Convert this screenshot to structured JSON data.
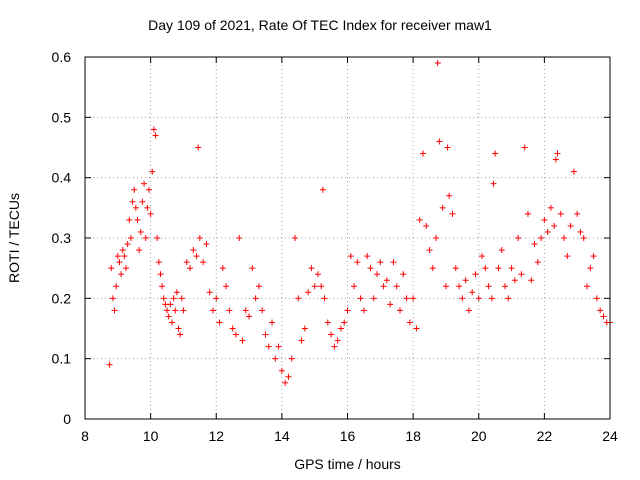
{
  "chart_data": {
    "type": "scatter",
    "title": "Day 109 of 2021, Rate Of TEC Index for receiver maw1",
    "xlabel": "GPS time / hours",
    "ylabel": "ROTI / TECUs",
    "xlim": [
      8,
      24
    ],
    "ylim": [
      0,
      0.6
    ],
    "xticks": [
      8,
      10,
      12,
      14,
      16,
      18,
      20,
      22,
      24
    ],
    "yticks": [
      0,
      0.1,
      0.2,
      0.3,
      0.4,
      0.5,
      0.6
    ],
    "grid": true,
    "marker": "plus",
    "color": "#ff0000",
    "series": [
      {
        "x": [
          8.75,
          8.8,
          8.85,
          8.9,
          8.95,
          9.0,
          9.05,
          9.1,
          9.15,
          9.2,
          9.25,
          9.3,
          9.35,
          9.4,
          9.45,
          9.5,
          9.55,
          9.6,
          9.65,
          9.7,
          9.75,
          9.8,
          9.85,
          9.9,
          9.95,
          10.0,
          10.05,
          10.1,
          10.15,
          10.2,
          10.25,
          10.3,
          10.35,
          10.4,
          10.45,
          10.5,
          10.55,
          10.6,
          10.65,
          10.7,
          10.75,
          10.8,
          10.85,
          10.9,
          10.95,
          11.0,
          11.1,
          11.2,
          11.3,
          11.4,
          11.45,
          11.5,
          11.6,
          11.7,
          11.8,
          11.9,
          12.0,
          12.1,
          12.2,
          12.3,
          12.4,
          12.5,
          12.6,
          12.7,
          12.8,
          12.9,
          13.0,
          13.1,
          13.2,
          13.3,
          13.4,
          13.5,
          13.6,
          13.7,
          13.8,
          13.9,
          14.0,
          14.1,
          14.2,
          14.3,
          14.4,
          14.5,
          14.6,
          14.7,
          14.8,
          14.9,
          15.0,
          15.1,
          15.2,
          15.25,
          15.3,
          15.4,
          15.5,
          15.6,
          15.7,
          15.8,
          15.9,
          16.0,
          16.1,
          16.2,
          16.3,
          16.4,
          16.5,
          16.6,
          16.7,
          16.8,
          16.9,
          17.0,
          17.1,
          17.2,
          17.3,
          17.4,
          17.5,
          17.6,
          17.7,
          17.8,
          17.9,
          18.0,
          18.1,
          18.2,
          18.3,
          18.4,
          18.5,
          18.6,
          18.7,
          18.75,
          18.8,
          18.9,
          19.0,
          19.05,
          19.1,
          19.2,
          19.3,
          19.4,
          19.5,
          19.6,
          19.7,
          19.8,
          19.9,
          20.0,
          20.1,
          20.2,
          20.3,
          20.4,
          20.45,
          20.5,
          20.6,
          20.7,
          20.8,
          20.9,
          21.0,
          21.1,
          21.2,
          21.3,
          21.4,
          21.5,
          21.6,
          21.7,
          21.8,
          21.9,
          22.0,
          22.1,
          22.2,
          22.3,
          22.35,
          22.4,
          22.5,
          22.6,
          22.7,
          22.8,
          22.9,
          23.0,
          23.1,
          23.2,
          23.3,
          23.4,
          23.5,
          23.6,
          23.7,
          23.8,
          23.9,
          24.0
        ],
        "y": [
          0.09,
          0.25,
          0.2,
          0.18,
          0.22,
          0.27,
          0.26,
          0.24,
          0.28,
          0.27,
          0.25,
          0.29,
          0.33,
          0.3,
          0.36,
          0.38,
          0.35,
          0.33,
          0.28,
          0.31,
          0.36,
          0.39,
          0.3,
          0.35,
          0.38,
          0.34,
          0.41,
          0.48,
          0.47,
          0.3,
          0.26,
          0.24,
          0.22,
          0.2,
          0.19,
          0.18,
          0.17,
          0.19,
          0.16,
          0.2,
          0.18,
          0.21,
          0.15,
          0.14,
          0.2,
          0.18,
          0.26,
          0.25,
          0.28,
          0.27,
          0.45,
          0.3,
          0.26,
          0.29,
          0.21,
          0.18,
          0.2,
          0.16,
          0.25,
          0.22,
          0.18,
          0.15,
          0.14,
          0.3,
          0.13,
          0.18,
          0.17,
          0.25,
          0.2,
          0.22,
          0.18,
          0.14,
          0.12,
          0.16,
          0.1,
          0.12,
          0.08,
          0.06,
          0.07,
          0.1,
          0.3,
          0.2,
          0.13,
          0.15,
          0.21,
          0.25,
          0.22,
          0.24,
          0.22,
          0.38,
          0.2,
          0.16,
          0.14,
          0.12,
          0.13,
          0.15,
          0.16,
          0.18,
          0.27,
          0.22,
          0.26,
          0.2,
          0.18,
          0.27,
          0.25,
          0.2,
          0.24,
          0.26,
          0.22,
          0.23,
          0.19,
          0.26,
          0.22,
          0.18,
          0.24,
          0.2,
          0.16,
          0.2,
          0.15,
          0.33,
          0.44,
          0.32,
          0.28,
          0.25,
          0.3,
          0.59,
          0.46,
          0.35,
          0.22,
          0.45,
          0.37,
          0.34,
          0.25,
          0.22,
          0.2,
          0.23,
          0.18,
          0.21,
          0.24,
          0.2,
          0.27,
          0.25,
          0.22,
          0.2,
          0.39,
          0.44,
          0.25,
          0.28,
          0.22,
          0.2,
          0.25,
          0.23,
          0.3,
          0.24,
          0.45,
          0.34,
          0.23,
          0.29,
          0.26,
          0.3,
          0.33,
          0.31,
          0.35,
          0.32,
          0.43,
          0.44,
          0.34,
          0.3,
          0.27,
          0.32,
          0.41,
          0.34,
          0.31,
          0.3,
          0.22,
          0.25,
          0.27,
          0.2,
          0.18,
          0.17,
          0.16,
          0.16
        ]
      }
    ]
  }
}
